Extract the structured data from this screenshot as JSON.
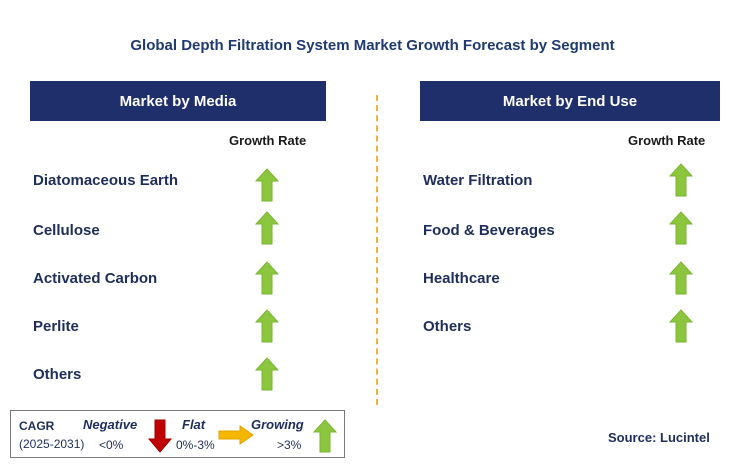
{
  "title": "Global Depth Filtration System Market Growth Forecast by Segment",
  "left_panel": {
    "header": "Market by Media",
    "growth_label": "Growth Rate",
    "items": [
      {
        "label": "Diatomaceous Earth",
        "trend": "growing"
      },
      {
        "label": "Cellulose",
        "trend": "growing"
      },
      {
        "label": "Activated Carbon",
        "trend": "growing"
      },
      {
        "label": "Perlite",
        "trend": "growing"
      },
      {
        "label": "Others",
        "trend": "growing"
      }
    ]
  },
  "right_panel": {
    "header": "Market by End Use",
    "growth_label": "Growth Rate",
    "items": [
      {
        "label": "Water Filtration",
        "trend": "growing"
      },
      {
        "label": "Food & Beverages",
        "trend": "growing"
      },
      {
        "label": "Healthcare",
        "trend": "growing"
      },
      {
        "label": "Others",
        "trend": "growing"
      }
    ]
  },
  "legend": {
    "cagr": "CAGR",
    "period": "(2025-2031)",
    "negative": {
      "label": "Negative",
      "range": "<0%",
      "icon": "red-down-arrow-icon"
    },
    "flat": {
      "label": "Flat",
      "range": "0%-3%",
      "icon": "orange-right-arrow-icon"
    },
    "growing": {
      "label": "Growing",
      "range": ">3%",
      "icon": "green-up-arrow-icon"
    }
  },
  "source": "Source: Lucintel",
  "colors": {
    "header_bg": "#1f2f6b",
    "growing": "#8cc63f",
    "negative": "#c00000",
    "flat": "#f5b700",
    "divider": "#f0b33c"
  }
}
